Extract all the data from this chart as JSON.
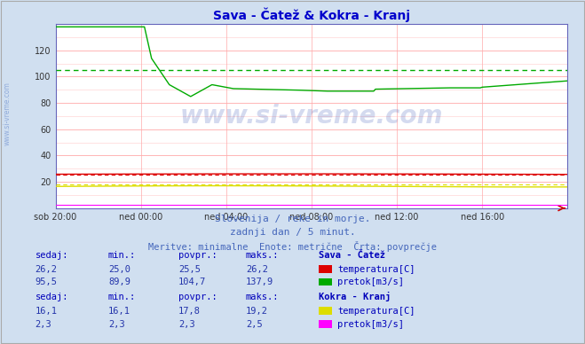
{
  "title": "Sava - Čatež & Kokra - Kranj",
  "title_color": "#0000cc",
  "bg_color": "#d0dff0",
  "plot_bg_color": "#ffffff",
  "grid_color_major": "#ffaaaa",
  "grid_color_minor": "#ffcccc",
  "x_labels": [
    "sob 20:00",
    "ned 00:00",
    "ned 04:00",
    "ned 08:00",
    "ned 12:00",
    "ned 16:00"
  ],
  "x_ticks_pos": [
    0,
    24,
    48,
    72,
    96,
    120
  ],
  "y_ticks": [
    20,
    40,
    60,
    80,
    100,
    120
  ],
  "ylim": [
    0,
    140
  ],
  "xlim": [
    0,
    144
  ],
  "subtitle1": "Slovenija / reke in morje.",
  "subtitle2": "zadnji dan / 5 minut.",
  "subtitle3": "Meritve: minimalne  Enote: metrične  Črta: povprečje",
  "subtitle_color": "#4466bb",
  "watermark": "www.si-vreme.com",
  "watermark_color": "#1133aa",
  "sava_catez_label": "Sava - Čatež",
  "sava_temp_color": "#dd0000",
  "sava_pretok_color": "#00aa00",
  "sava_pretok_povpr": 104.7,
  "sava_temp_povpr": 25.5,
  "kokra_kranj_label": "Kokra - Kranj",
  "kokra_temp_color": "#dddd00",
  "kokra_pretok_color": "#ff00ff",
  "kokra_temp_povpr": 17.8,
  "kokra_pretok_povpr": 2.3,
  "table_header_color": "#0000bb",
  "table_value_color": "#2233aa",
  "axis_color": "#cc0000",
  "spine_color": "#6666bb",
  "tick_color": "#333333",
  "watermark_alpha": 0.18,
  "left_label_color": "#6688cc"
}
